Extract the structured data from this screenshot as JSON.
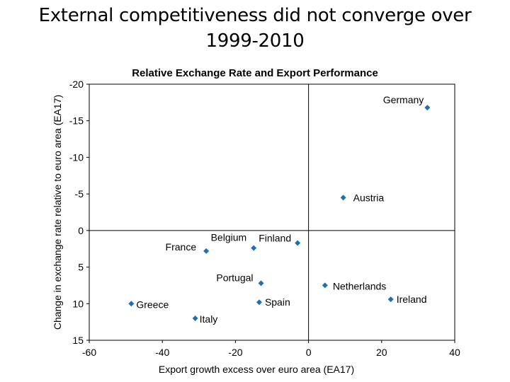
{
  "slide": {
    "title": "External competitiveness did not converge over 1999-2010"
  },
  "chart_data": {
    "type": "scatter",
    "title": "Relative Exchange Rate and Export Performance",
    "xlabel": "Export growth excess over euro area (EA17)",
    "ylabel": "Change in exchange rate relative to euro area (EA17)",
    "xlim": [
      -60,
      40
    ],
    "ylim": [
      15,
      -20
    ],
    "y_axis_inverted": true,
    "xticks": [
      -60,
      -40,
      -20,
      0,
      20,
      40
    ],
    "yticks": [
      -20,
      -15,
      -10,
      -5,
      0,
      5,
      10,
      15
    ],
    "grid": false,
    "reference_lines": {
      "x": 0,
      "y": 0
    },
    "marker": "diamond",
    "marker_color": "#1f6fb2",
    "points": [
      {
        "label": "Germany",
        "x": 32.5,
        "y": -16.8
      },
      {
        "label": "Austria",
        "x": 9.5,
        "y": -4.5
      },
      {
        "label": "France",
        "x": -28,
        "y": 2.8
      },
      {
        "label": "Belgium",
        "x": -15,
        "y": 2.4
      },
      {
        "label": "Finland",
        "x": -3,
        "y": 1.7
      },
      {
        "label": "Portugal",
        "x": -13,
        "y": 7.2
      },
      {
        "label": "Netherlands",
        "x": 4.5,
        "y": 7.5
      },
      {
        "label": "Ireland",
        "x": 22.5,
        "y": 9.4
      },
      {
        "label": "Greece",
        "x": -48.5,
        "y": 10.0
      },
      {
        "label": "Spain",
        "x": -13.5,
        "y": 9.8
      },
      {
        "label": "Italy",
        "x": -31,
        "y": 12.0
      }
    ]
  }
}
